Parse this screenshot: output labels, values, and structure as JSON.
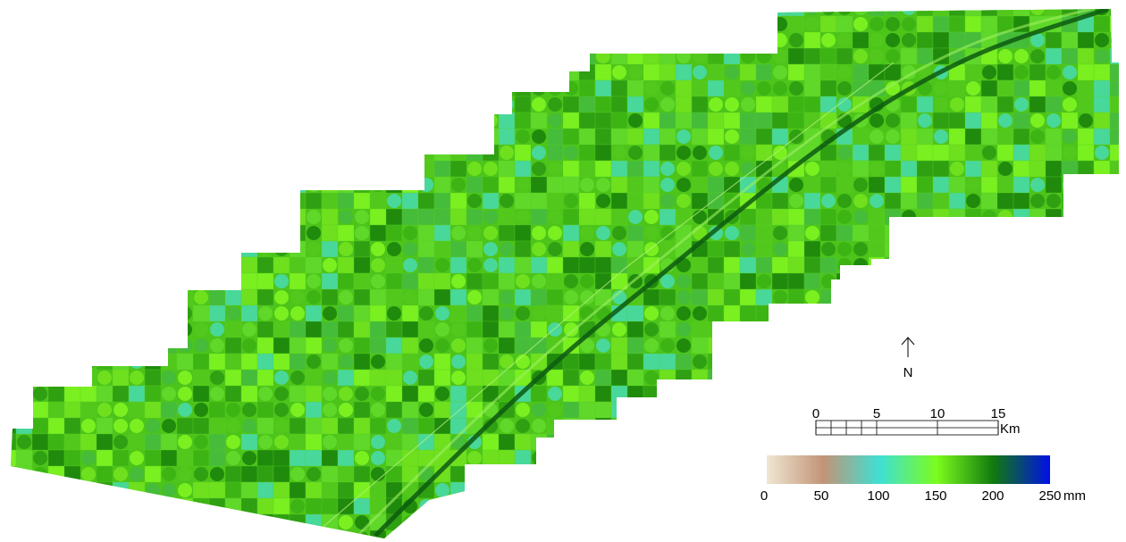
{
  "north": {
    "label": "N"
  },
  "scale_bar": {
    "ticks": [
      0,
      5,
      10,
      15
    ],
    "unit": "Km"
  },
  "legend": {
    "ticks": [
      0,
      50,
      100,
      150,
      200,
      250
    ],
    "unit": "mm"
  }
}
